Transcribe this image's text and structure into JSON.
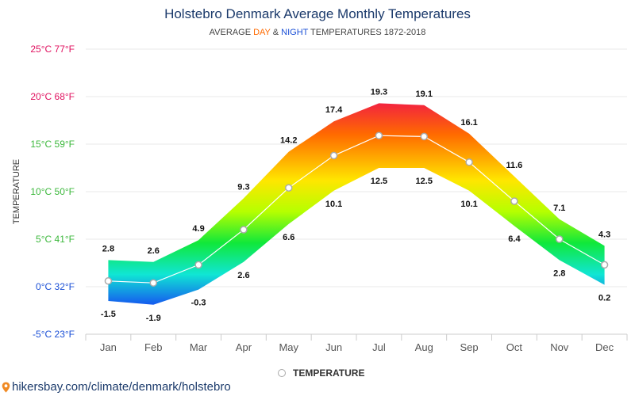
{
  "chart_data": {
    "type": "area",
    "title": "Holstebro Denmark Average Monthly Temperatures",
    "subtitle": {
      "prefix": "AVERAGE ",
      "day": "DAY",
      "amp": " & ",
      "night": "NIGHT",
      "suffix": " TEMPERATURES 1872-2018"
    },
    "ylabel": "TEMPERATURE",
    "ylim": [
      -5,
      25
    ],
    "y_ticks": [
      {
        "value": 25,
        "label": "25°C 77°F",
        "color": "#e0115f"
      },
      {
        "value": 20,
        "label": "20°C 68°F",
        "color": "#e0115f"
      },
      {
        "value": 15,
        "label": "15°C 59°F",
        "color": "#3cb83c"
      },
      {
        "value": 10,
        "label": "10°C 50°F",
        "color": "#3cb83c"
      },
      {
        "value": 5,
        "label": "5°C 41°F",
        "color": "#3cb83c"
      },
      {
        "value": 0,
        "label": "0°C 32°F",
        "color": "#1a4fd6"
      },
      {
        "value": -5,
        "label": "-5°C 23°F",
        "color": "#1a4fd6"
      }
    ],
    "categories": [
      "Jan",
      "Feb",
      "Mar",
      "Apr",
      "May",
      "Jun",
      "Jul",
      "Aug",
      "Sep",
      "Oct",
      "Nov",
      "Dec"
    ],
    "day": [
      2.8,
      2.6,
      4.9,
      9.3,
      14.2,
      17.4,
      19.3,
      19.1,
      16.1,
      11.6,
      7.1,
      4.3
    ],
    "night": [
      -1.5,
      -1.9,
      -0.3,
      2.6,
      6.6,
      10.1,
      12.5,
      12.5,
      10.1,
      6.4,
      2.8,
      0.2
    ],
    "series": [
      {
        "name": "TEMPERATURE",
        "values": [
          0.6,
          0.4,
          2.3,
          6.0,
          10.4,
          13.8,
          15.9,
          15.8,
          13.1,
          9.0,
          5.0,
          2.3
        ]
      }
    ],
    "legend": {
      "position": "bottom",
      "label": "TEMPERATURE"
    },
    "grid": true
  },
  "source": "hikersbay.com/climate/denmark/holstebro",
  "colors": {
    "title": "#1b3a6b",
    "grid": "#e8e8e8",
    "axis": "#cccccc",
    "marker_stroke": "#aaaaaa"
  }
}
